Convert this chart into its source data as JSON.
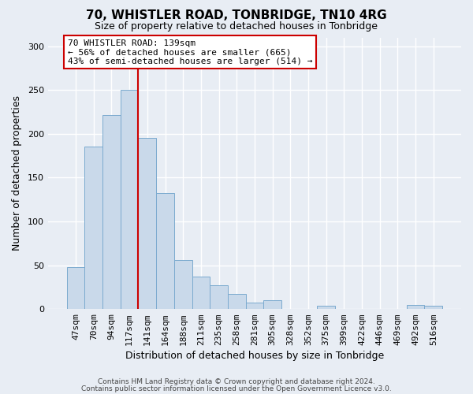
{
  "title": "70, WHISTLER ROAD, TONBRIDGE, TN10 4RG",
  "subtitle": "Size of property relative to detached houses in Tonbridge",
  "xlabel": "Distribution of detached houses by size in Tonbridge",
  "ylabel": "Number of detached properties",
  "bar_labels": [
    "47sqm",
    "70sqm",
    "94sqm",
    "117sqm",
    "141sqm",
    "164sqm",
    "188sqm",
    "211sqm",
    "235sqm",
    "258sqm",
    "281sqm",
    "305sqm",
    "328sqm",
    "352sqm",
    "375sqm",
    "399sqm",
    "422sqm",
    "446sqm",
    "469sqm",
    "492sqm",
    "516sqm"
  ],
  "bar_heights": [
    48,
    185,
    221,
    250,
    195,
    132,
    56,
    37,
    27,
    17,
    7,
    10,
    0,
    0,
    4,
    0,
    0,
    0,
    0,
    5,
    4
  ],
  "bar_color": "#c9d9ea",
  "bar_edge_color": "#7baacf",
  "ylim": [
    0,
    310
  ],
  "yticks": [
    0,
    50,
    100,
    150,
    200,
    250,
    300
  ],
  "vline_index": 3.5,
  "property_line_label": "70 WHISTLER ROAD: 139sqm",
  "annotation_line1": "← 56% of detached houses are smaller (665)",
  "annotation_line2": "43% of semi-detached houses are larger (514) →",
  "annotation_box_color": "#ffffff",
  "annotation_box_edge_color": "#cc0000",
  "vline_color": "#cc0000",
  "footer1": "Contains HM Land Registry data © Crown copyright and database right 2024.",
  "footer2": "Contains public sector information licensed under the Open Government Licence v3.0.",
  "bg_color": "#e8edf4",
  "grid_color": "#ffffff",
  "title_fontsize": 11,
  "subtitle_fontsize": 9,
  "axis_label_fontsize": 9,
  "tick_fontsize": 8,
  "annotation_fontsize": 8,
  "footer_fontsize": 6.5
}
